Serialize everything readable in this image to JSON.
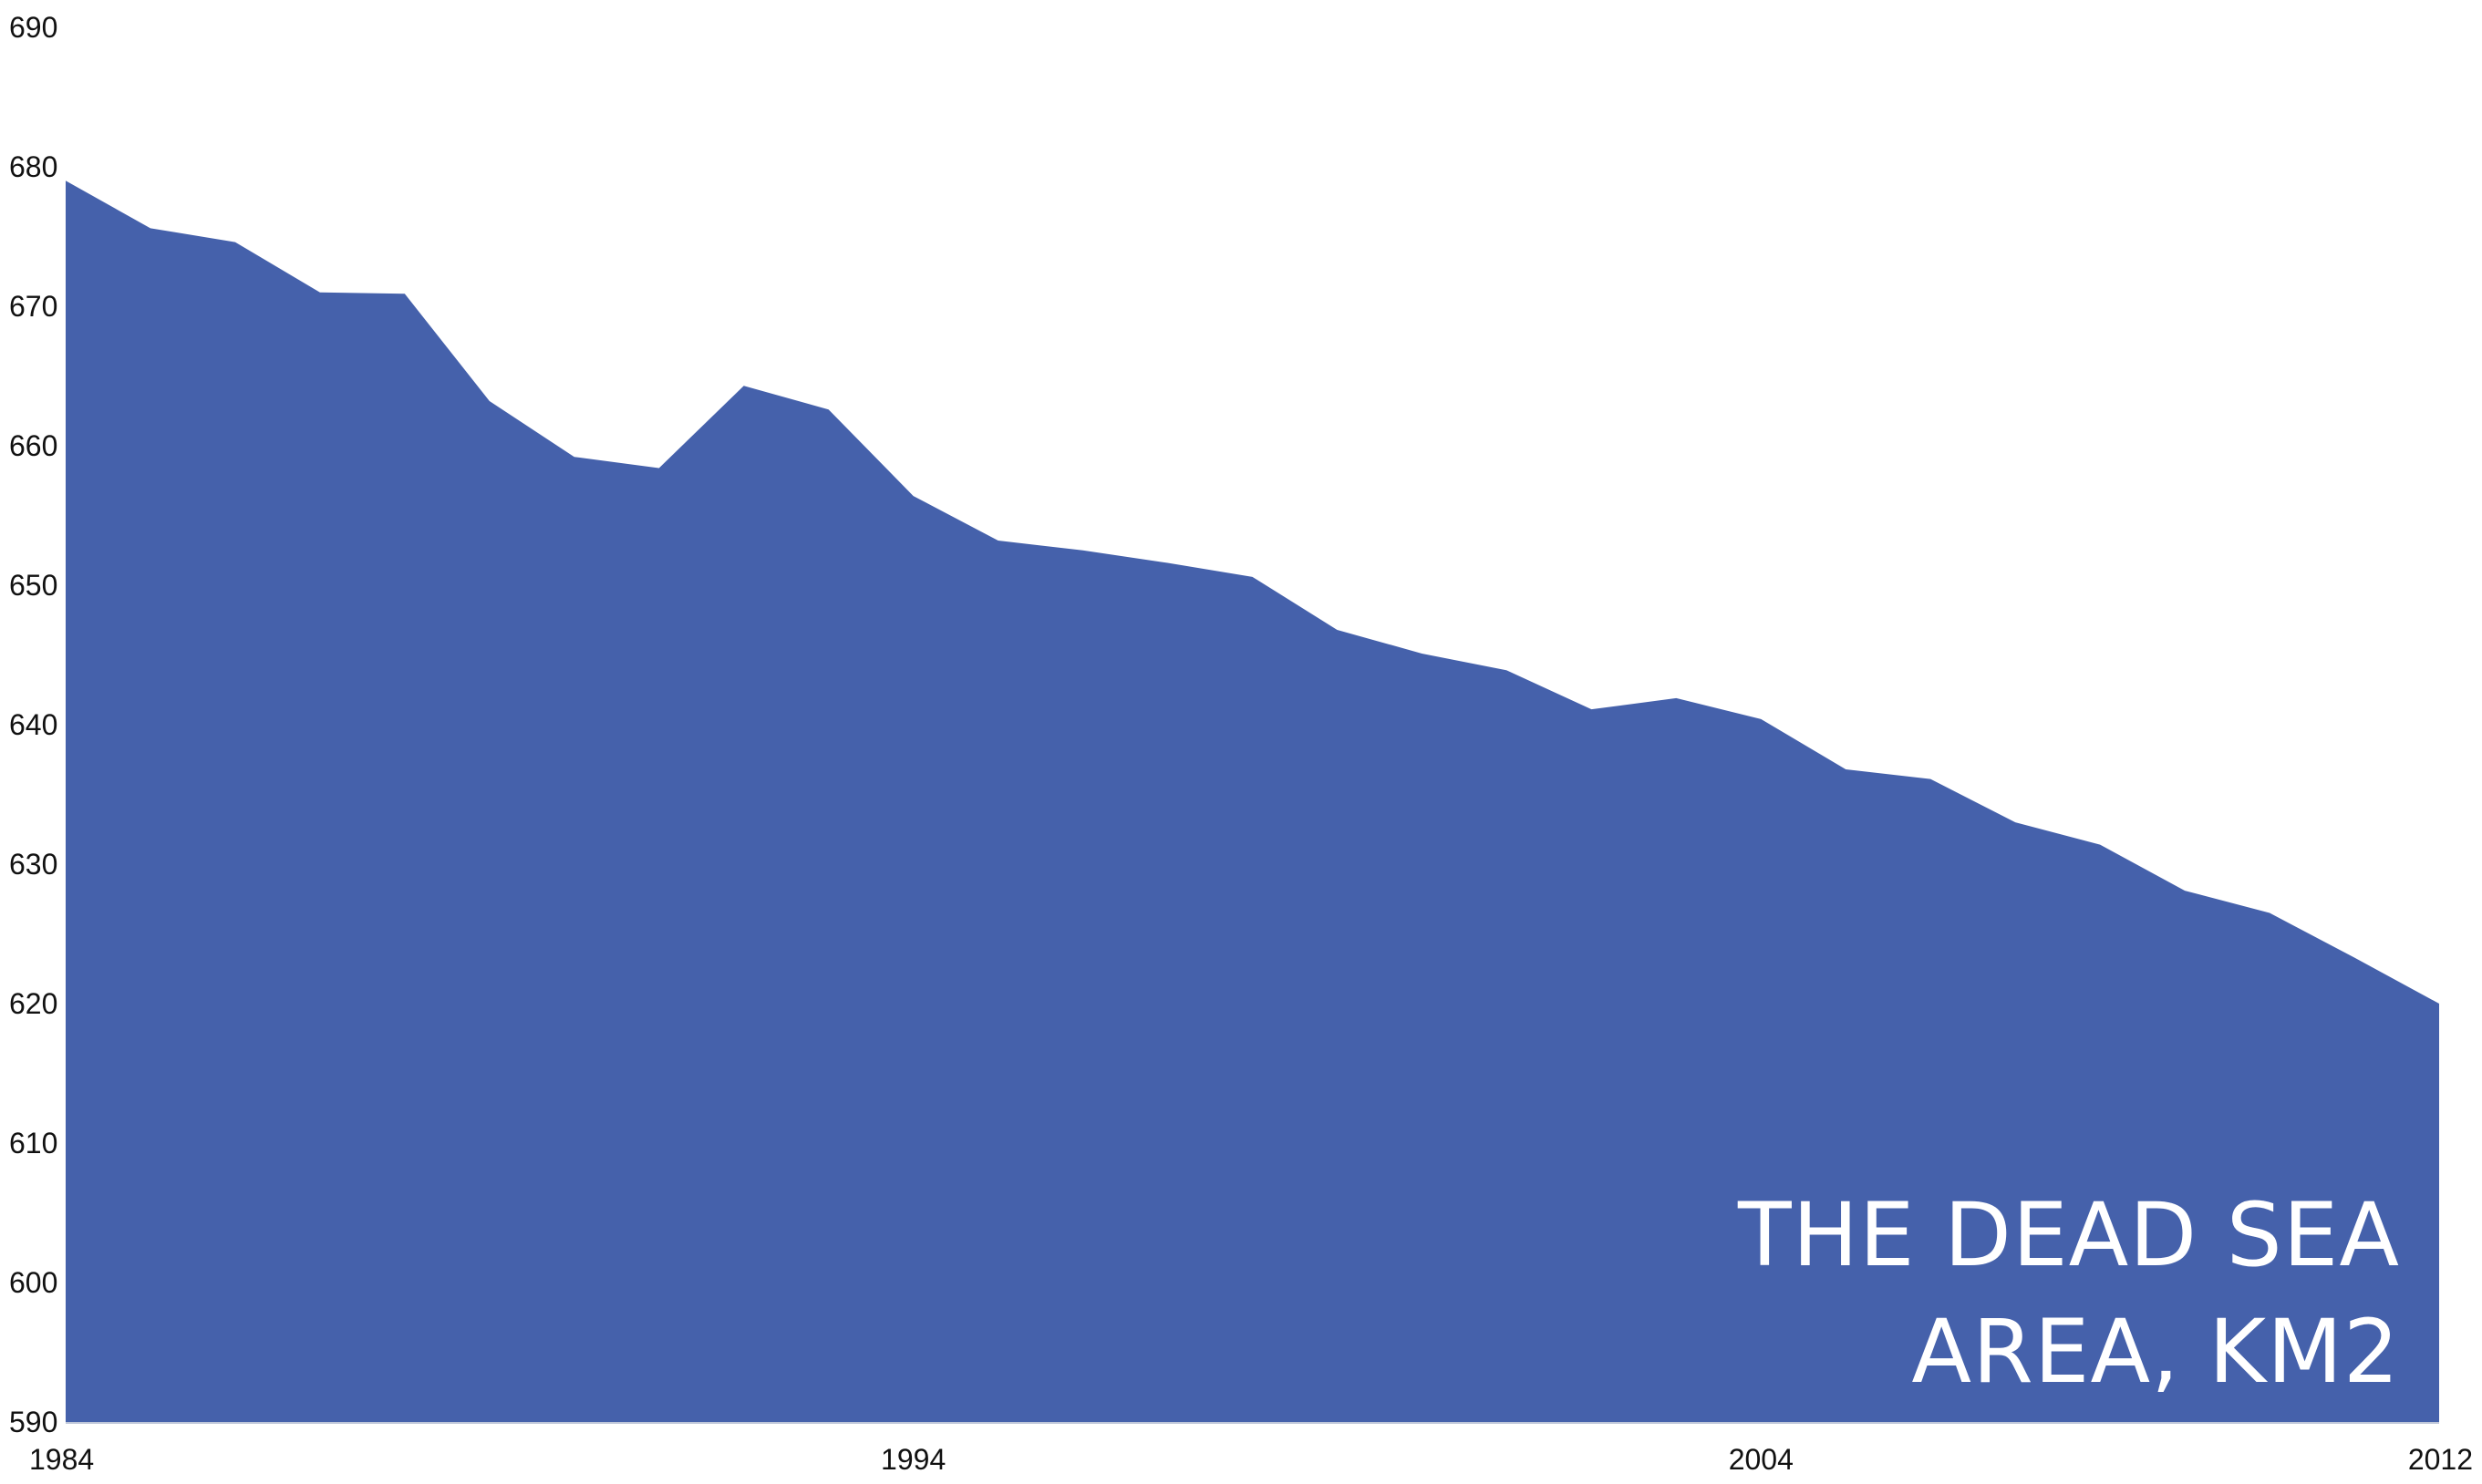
{
  "chart_data": {
    "type": "area",
    "title_lines": [
      "THE DEAD SEA",
      "AREA, KM2"
    ],
    "xlabel": "",
    "ylabel": "",
    "xlim": [
      1984,
      2012
    ],
    "ylim": [
      590,
      690
    ],
    "x_ticks": [
      1984,
      1994,
      2004,
      2012
    ],
    "y_ticks": [
      590,
      600,
      610,
      620,
      630,
      640,
      650,
      660,
      670,
      680,
      690
    ],
    "grid": false,
    "legend": "none",
    "fill_color": "#4561AB",
    "baseline_color": "#BFC7D9",
    "series": [
      {
        "x": [
          1984,
          1985,
          1986,
          1987,
          1988,
          1989,
          1990,
          1991,
          1992,
          1993,
          1994,
          1995,
          1996,
          1997,
          1998,
          1999,
          2000,
          2001,
          2002,
          2003,
          2004,
          2005,
          2006,
          2007,
          2008,
          2009,
          2010,
          2011,
          2012
        ],
        "values": [
          679,
          675.6,
          674.6,
          671,
          670.9,
          663.2,
          659.2,
          658.4,
          664.3,
          662.6,
          656.4,
          653.2,
          652.5,
          651.6,
          650.6,
          646.8,
          645.1,
          643.9,
          641.1,
          641.9,
          640.4,
          636.8,
          636.1,
          633,
          631.4,
          628.1,
          626.5,
          623.3,
          620
        ]
      }
    ]
  }
}
